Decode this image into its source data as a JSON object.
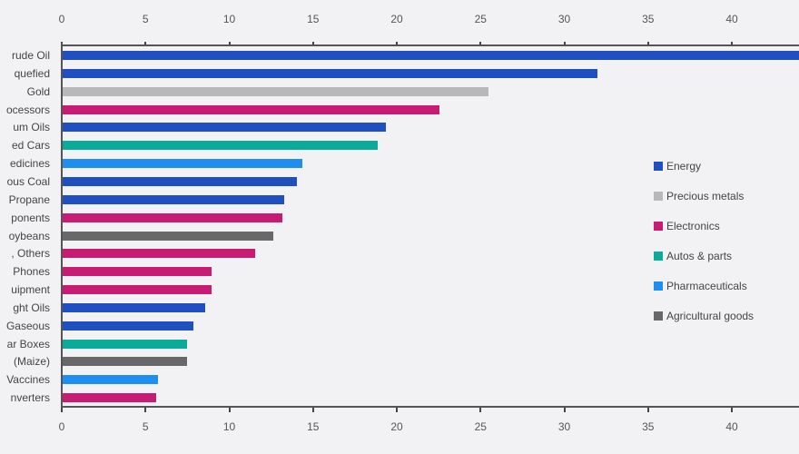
{
  "chart_data": {
    "type": "bar",
    "orientation": "horizontal",
    "title": "",
    "xlabel": "",
    "ylabel": "",
    "xlim": [
      0,
      44
    ],
    "x_ticks": [
      0,
      5,
      10,
      15,
      20,
      25,
      30,
      35,
      40
    ],
    "grid": false,
    "legend_position": "right",
    "categories": [
      "Crude Oil",
      "Liquefied",
      "Gold",
      "Processors",
      "Petroleum Oils",
      "Used Cars",
      "Medicines",
      "Coal",
      "Propane",
      "Components",
      "Soybeans",
      "Others",
      "Phones",
      "Equipment",
      "Light Oils",
      "Gaseous",
      "Boxes",
      "Maize",
      "Vaccines",
      "Inverters"
    ],
    "visible_labels": [
      "rude Oil",
      "quefied",
      "Gold",
      "ocessors",
      "um Oils",
      "ed Cars",
      "edicines",
      "ous Coal",
      "Propane",
      "ponents",
      "oybeans",
      ", Others",
      "Phones",
      "uipment",
      "ght Oils",
      "Gaseous",
      "ar Boxes",
      "(Maize)",
      "Vaccines",
      "nverters"
    ],
    "values": [
      44.5,
      31.9,
      25.4,
      22.5,
      19.3,
      18.8,
      14.3,
      14.0,
      13.2,
      13.1,
      12.6,
      11.5,
      8.9,
      8.9,
      8.5,
      7.8,
      7.4,
      7.4,
      5.7,
      5.6
    ],
    "groups": [
      "Energy",
      "Energy",
      "Precious metals",
      "Electronics",
      "Energy",
      "Autos & parts",
      "Pharmaceuticals",
      "Energy",
      "Energy",
      "Electronics",
      "Agricultural goods",
      "Electronics",
      "Electronics",
      "Electronics",
      "Energy",
      "Energy",
      "Autos & parts",
      "Agricultural goods",
      "Pharmaceuticals",
      "Electronics"
    ],
    "legend": [
      {
        "name": "Energy",
        "color": "#1f4fc1"
      },
      {
        "name": "Precious metals",
        "color": "#b8b8b8"
      },
      {
        "name": "Electronics",
        "color": "#c81c74"
      },
      {
        "name": "Autos & parts",
        "color": "#0aab98"
      },
      {
        "name": "Pharmaceuticals",
        "color": "#1e8ff0"
      },
      {
        "name": "Agricultural goods",
        "color": "#686868"
      }
    ]
  }
}
